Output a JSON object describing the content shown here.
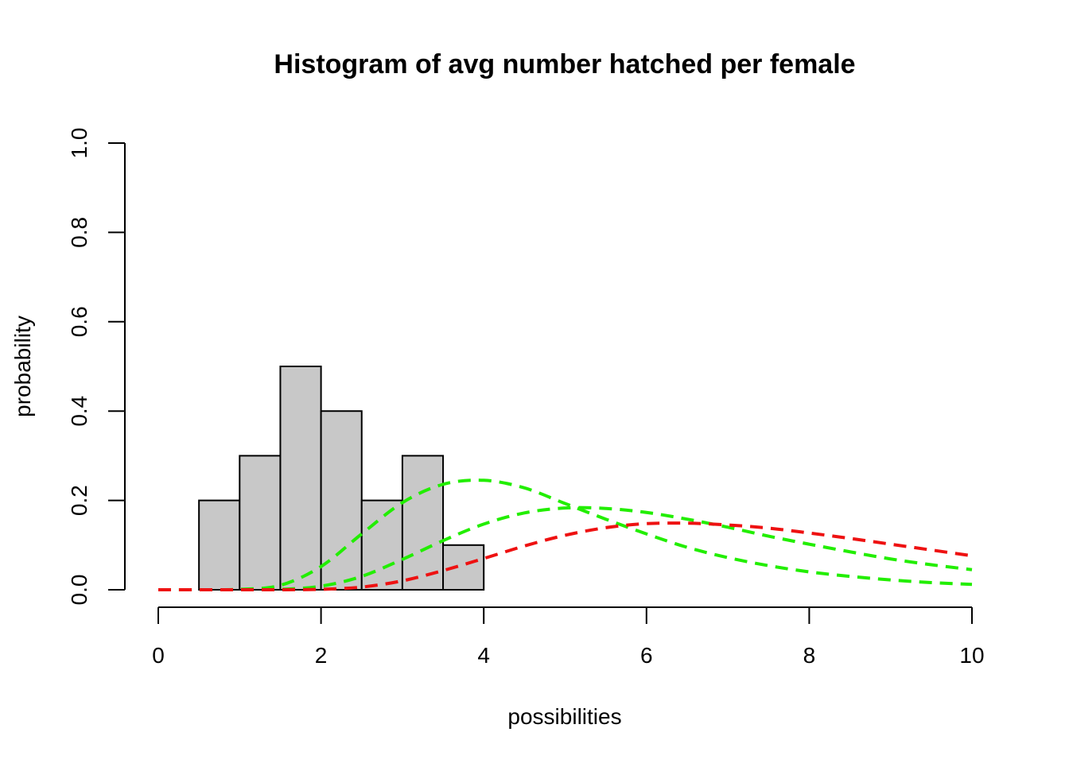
{
  "chart_data": {
    "type": "histogram",
    "title": "Histogram of avg number hatched per female",
    "xlabel": "possibilities",
    "ylabel": "probability",
    "xlim": [
      0,
      10
    ],
    "ylim": [
      0,
      1
    ],
    "x_ticks": [
      "0",
      "2",
      "4",
      "6",
      "8",
      "10"
    ],
    "y_ticks": [
      "0.0",
      "0.2",
      "0.4",
      "0.6",
      "0.8",
      "1.0"
    ],
    "grid": false,
    "legend": null,
    "bins": [
      {
        "x0": 0.5,
        "x1": 1.0,
        "value": 0.2
      },
      {
        "x0": 1.0,
        "x1": 1.5,
        "value": 0.3
      },
      {
        "x0": 1.5,
        "x1": 2.0,
        "value": 0.5
      },
      {
        "x0": 2.0,
        "x1": 2.5,
        "value": 0.4
      },
      {
        "x0": 2.5,
        "x1": 3.0,
        "value": 0.2
      },
      {
        "x0": 3.0,
        "x1": 3.5,
        "value": 0.3
      },
      {
        "x0": 3.5,
        "x1": 4.0,
        "value": 0.1
      }
    ],
    "bar_color": "#c8c8c8",
    "curves": [
      {
        "color": "#22ee00",
        "style": "dashed",
        "x": [
          0,
          0.5,
          1,
          1.5,
          2,
          2.5,
          3,
          3.5,
          4,
          4.5,
          5,
          5.5,
          6,
          6.5,
          7,
          7.5,
          8,
          8.5,
          9,
          9.5,
          10
        ],
        "y": [
          0,
          0.0,
          0.001,
          0.01,
          0.052,
          0.125,
          0.195,
          0.236,
          0.245,
          0.228,
          0.193,
          0.158,
          0.125,
          0.095,
          0.072,
          0.054,
          0.04,
          0.03,
          0.022,
          0.016,
          0.012
        ]
      },
      {
        "color": "#22ee00",
        "style": "dashed",
        "x": [
          0,
          0.5,
          1,
          1.5,
          2,
          2.5,
          3,
          3.5,
          4,
          4.5,
          5,
          5.5,
          6,
          6.5,
          7,
          7.5,
          8,
          8.5,
          9,
          9.5,
          10
        ],
        "y": [
          0,
          0.0,
          0.0,
          0.001,
          0.008,
          0.03,
          0.068,
          0.11,
          0.147,
          0.172,
          0.183,
          0.182,
          0.173,
          0.158,
          0.14,
          0.12,
          0.102,
          0.085,
          0.069,
          0.056,
          0.045
        ]
      },
      {
        "color": "#ee1111",
        "style": "dashed",
        "x": [
          0,
          0.5,
          1,
          1.5,
          2,
          2.5,
          3,
          3.5,
          4,
          4.5,
          5,
          5.5,
          6,
          6.5,
          7,
          7.5,
          8,
          8.5,
          9,
          9.5,
          10
        ],
        "y": [
          0,
          0.0,
          0.0,
          0.0,
          0.001,
          0.006,
          0.02,
          0.043,
          0.07,
          0.098,
          0.122,
          0.139,
          0.148,
          0.149,
          0.145,
          0.138,
          0.127,
          0.115,
          0.102,
          0.089,
          0.076
        ]
      }
    ]
  }
}
